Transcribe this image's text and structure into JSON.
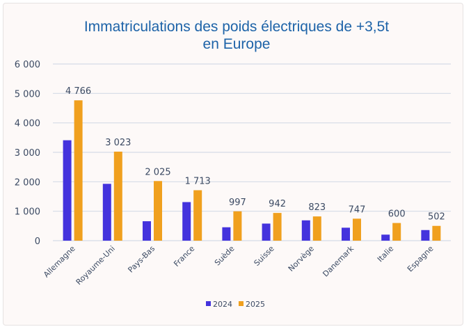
{
  "chart_data": {
    "type": "bar",
    "title_line1": "Immatriculations des poids électriques de +3,5t",
    "title_line2": "en Europe",
    "xlabel": "",
    "ylabel": "",
    "ylim": [
      0,
      6000
    ],
    "yticks": [
      0,
      1000,
      2000,
      3000,
      4000,
      5000,
      6000
    ],
    "ytick_labels": [
      "0",
      "1 000",
      "2 000",
      "3 000",
      "4 000",
      "5 000",
      "6 000"
    ],
    "grid": true,
    "legend_position": "bottom",
    "categories": [
      "Allemagne",
      "Royaume-Uni",
      "Pays-Bas",
      "France",
      "Suède",
      "Suisse",
      "Norvège",
      "Danemark",
      "Italie",
      "Espagne"
    ],
    "series": [
      {
        "name": "2024",
        "color": "#4433dd",
        "values": [
          3410,
          1930,
          660,
          1310,
          455,
          580,
          690,
          440,
          205,
          360
        ]
      },
      {
        "name": "2025",
        "color": "#f0a01e",
        "values": [
          4766,
          3023,
          2025,
          1713,
          997,
          942,
          823,
          747,
          600,
          502
        ],
        "data_labels": [
          "4 766",
          "3 023",
          "2 025",
          "1 713",
          "997",
          "942",
          "823",
          "747",
          "600",
          "502"
        ]
      }
    ],
    "title_color": "#1d63a8"
  }
}
